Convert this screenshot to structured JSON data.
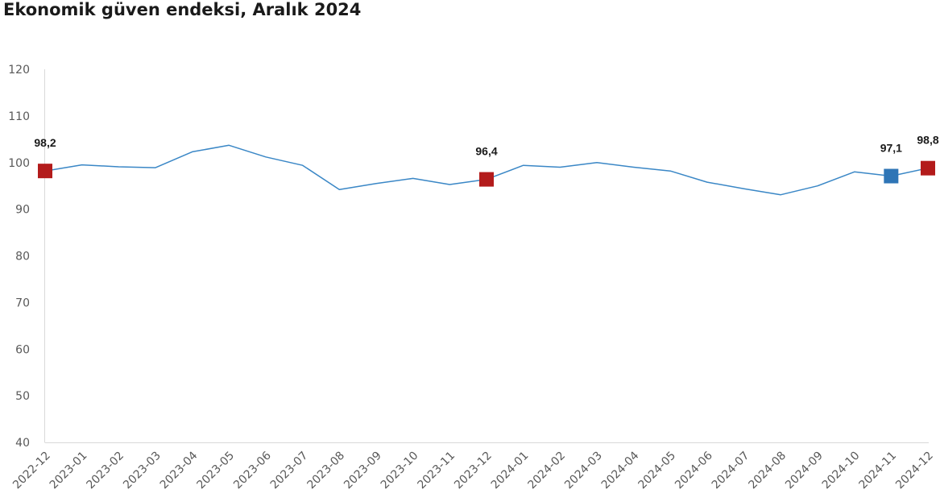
{
  "title": "Ekonomik güven endeksi, Aralık 2024",
  "chart_data": {
    "type": "line",
    "title": "Ekonomik güven endeksi, Aralık 2024",
    "xlabel": "",
    "ylabel": "",
    "ylim": [
      40,
      120
    ],
    "yticks": [
      40,
      50,
      60,
      70,
      80,
      90,
      100,
      110,
      120
    ],
    "grid": false,
    "categories": [
      "2022-12",
      "2023-01",
      "2023-02",
      "2023-03",
      "2023-04",
      "2023-05",
      "2023-06",
      "2023-07",
      "2023-08",
      "2023-09",
      "2023-10",
      "2023-11",
      "2023-12",
      "2024-01",
      "2024-02",
      "2024-03",
      "2024-04",
      "2024-05",
      "2024-06",
      "2024-07",
      "2024-08",
      "2024-09",
      "2024-10",
      "2024-11",
      "2024-12"
    ],
    "series": [
      {
        "values": [
          98.2,
          99.5,
          99.1,
          98.9,
          102.3,
          103.7,
          101.2,
          99.4,
          94.2,
          95.5,
          96.6,
          95.3,
          96.4,
          99.4,
          99.0,
          100.0,
          99.0,
          98.2,
          95.8,
          94.4,
          93.1,
          95.0,
          98.0,
          97.1,
          98.8
        ],
        "color": "#3a87c6"
      }
    ],
    "highlighted_points": [
      {
        "index": 0,
        "label": "98,2",
        "color": "#b31b1b"
      },
      {
        "index": 12,
        "label": "96,4",
        "color": "#b31b1b"
      },
      {
        "index": 23,
        "label": "97,1",
        "color": "#2e75b6"
      },
      {
        "index": 24,
        "label": "98,8",
        "color": "#b31b1b"
      }
    ]
  }
}
